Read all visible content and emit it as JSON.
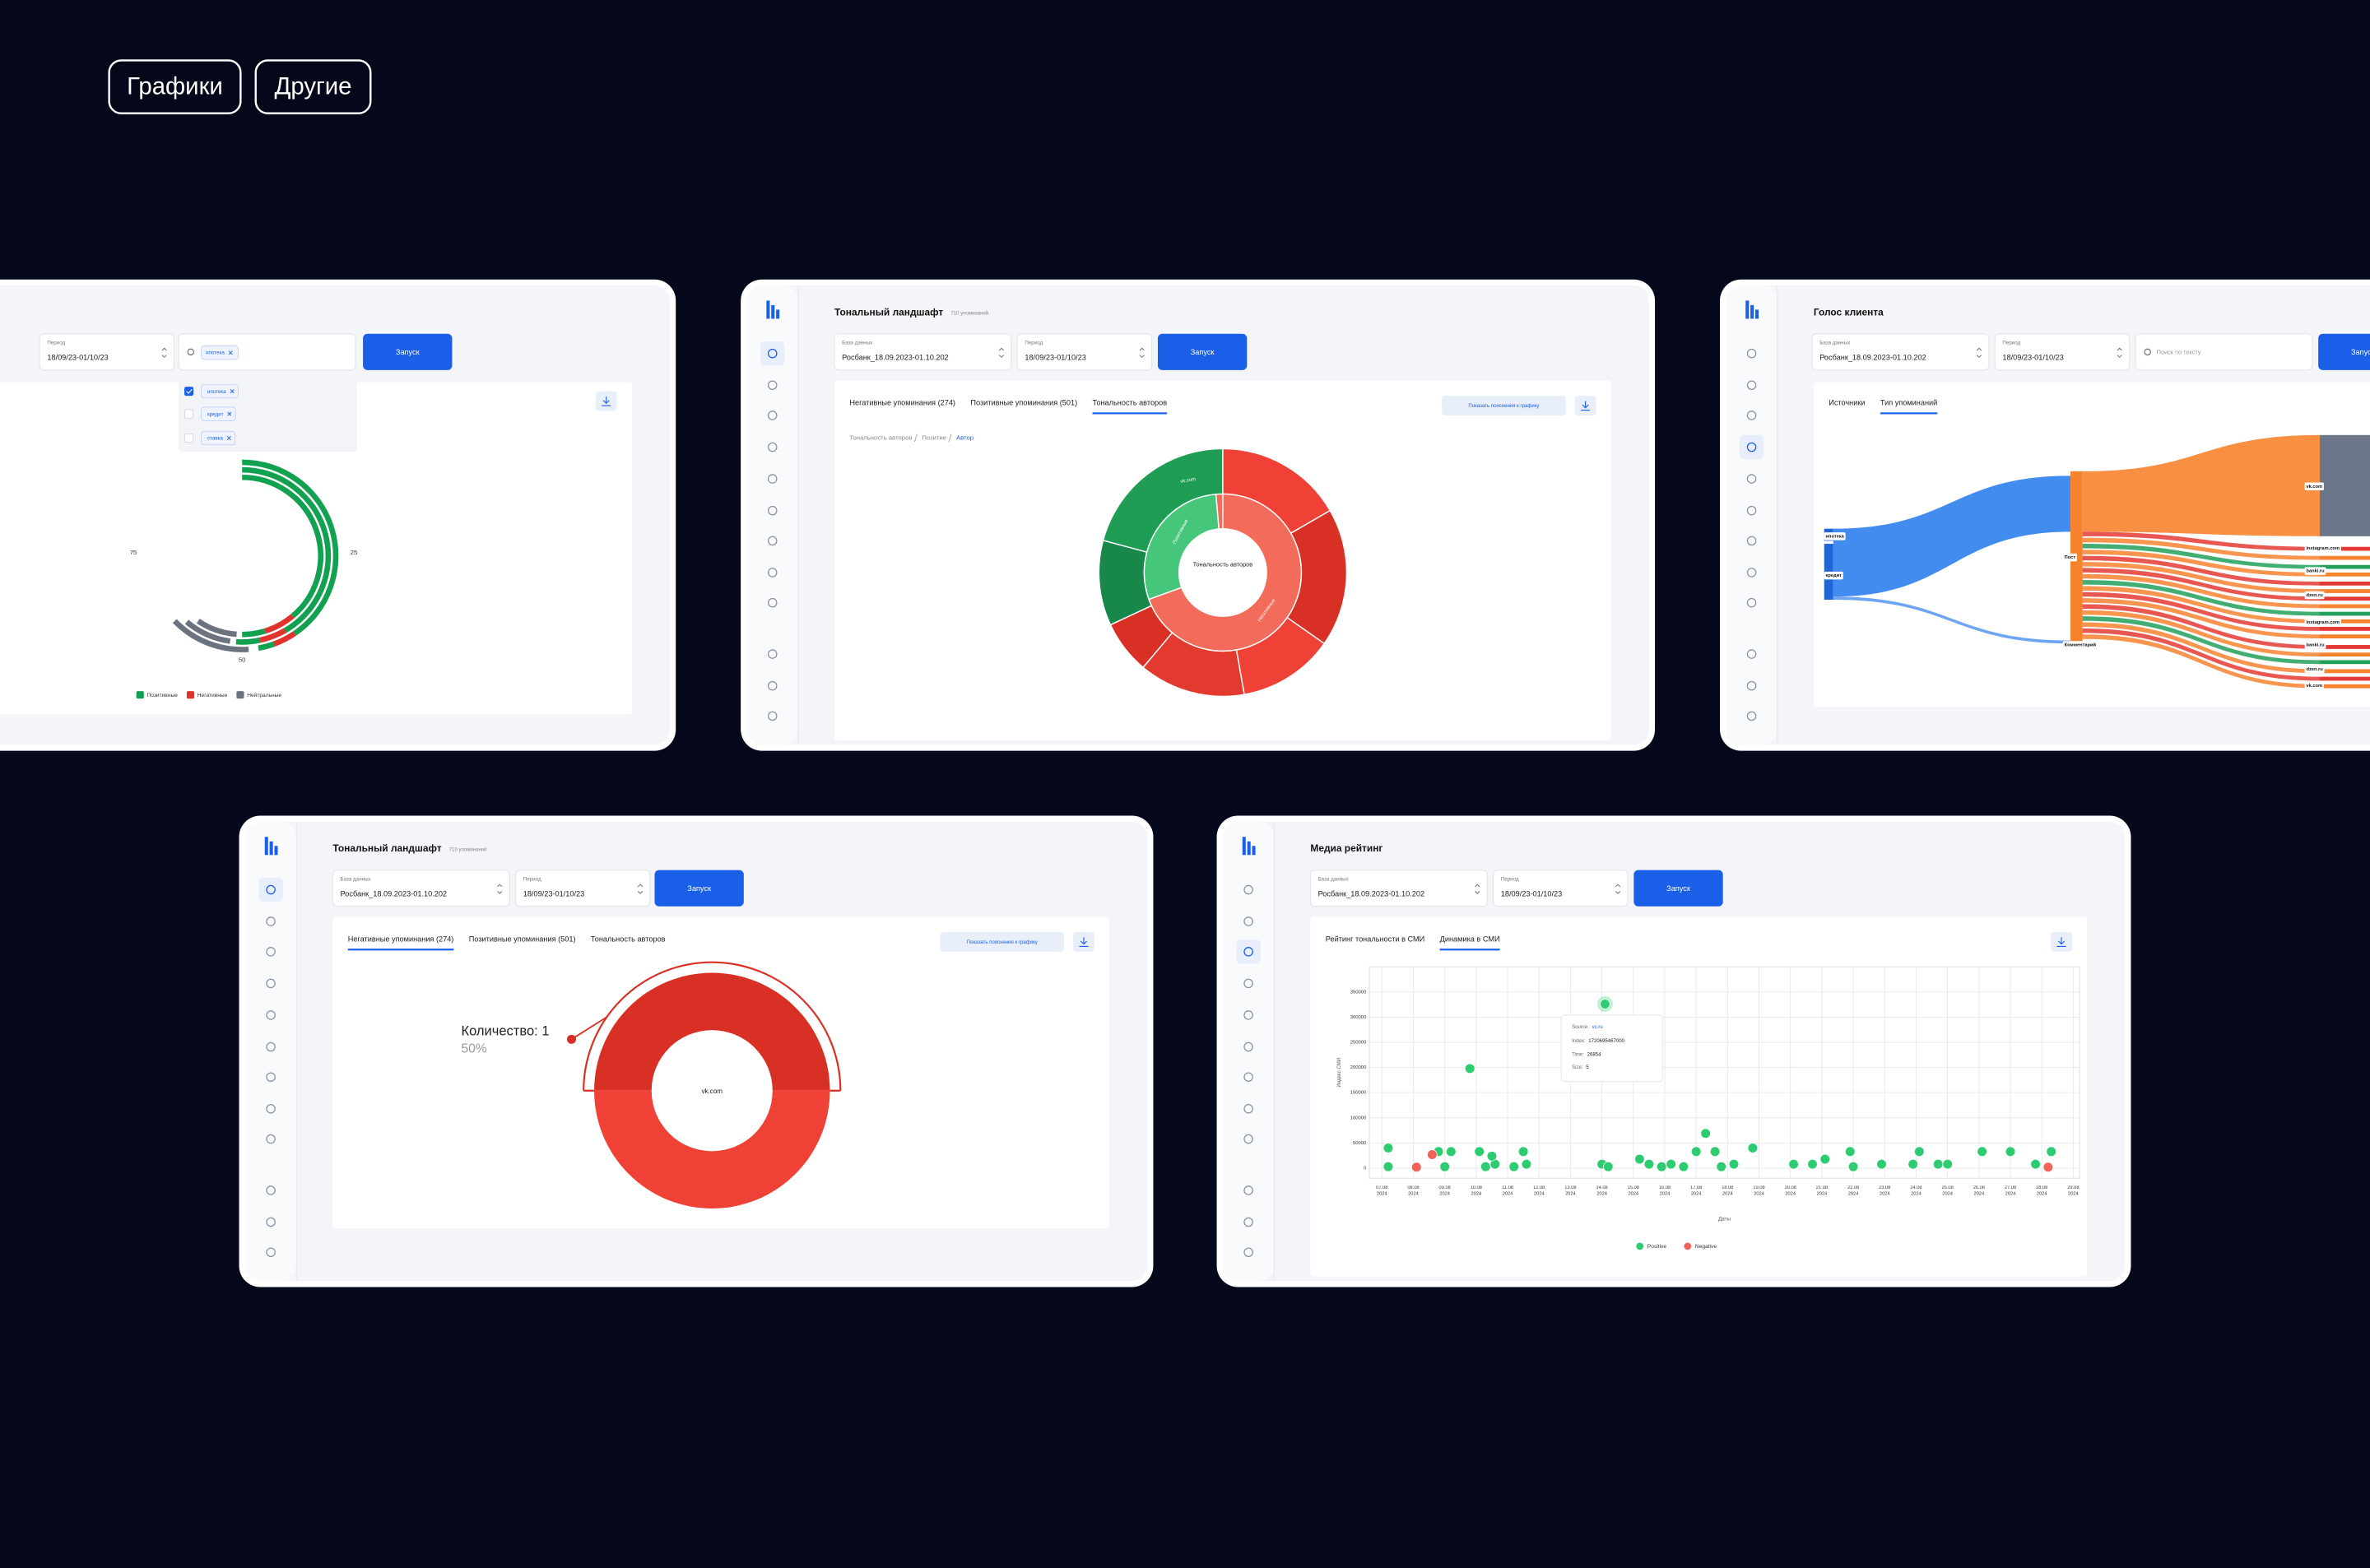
{
  "tags": [
    "Графики",
    "Другие"
  ],
  "panels": [
    {
      "fields": [
        {
          "label": "Период",
          "value": "18/09/23-01/10/23"
        }
      ],
      "search_chips": [
        "ипотека"
      ],
      "dropdown": [
        "ипотека",
        "кредит",
        "ставка"
      ],
      "button": "Запуск",
      "gauge_ticks": [
        75,
        25,
        50
      ],
      "legend": [
        "Позитивные",
        "Негативные",
        "Нейтральные"
      ]
    },
    {
      "title": "Тональный ландшафт",
      "count": "710 упоминаний",
      "fields": [
        {
          "label": "База данных",
          "value": "Росбанк_18.09.2023-01.10.202"
        },
        {
          "label": "Период",
          "value": "18/09/23-01/10/23"
        }
      ],
      "button": "Запуск",
      "tabs": [
        "Негативные упоминания (274)",
        "Позитивные упоминания (501)",
        "Тональность авторов"
      ],
      "active_tab": 2,
      "explain": "Показать пояснения к графику",
      "breadcrumb": [
        "Тональность авторов",
        "Позитие",
        "Автор"
      ],
      "center": "Тональность авторов",
      "ring_labels": [
        "vk.com",
        "Позитивные",
        "Негативные"
      ]
    },
    {
      "title": "Голос клиента",
      "fields": [
        {
          "label": "База данных",
          "value": "Росбанк_18.09.2023-01.10.202"
        },
        {
          "label": "Период",
          "value": "18/09/23-01/10/23"
        }
      ],
      "search": "Поиск по тексту",
      "button": "Запуск",
      "tabs": [
        "Источники",
        "Тип упоминаний"
      ],
      "active_tab": 1,
      "sankey_left": [
        "ипотека",
        "кредит"
      ],
      "sankey_middle": [
        "Пост",
        "Комментарий"
      ],
      "sankey_right": [
        "vk.com",
        "instagram.com",
        "banki.ru",
        "dzen.ru",
        "instagram.com",
        "banki.ru",
        "dzen.ru",
        "vk.com"
      ]
    },
    {
      "title": "Тональный ландшафт",
      "count": "710 упоминаний",
      "fields": [
        {
          "label": "База данных",
          "value": "Росбанк_18.09.2023-01.10.202"
        },
        {
          "label": "Период",
          "value": "18/09/23-01/10/23"
        }
      ],
      "button": "Запуск",
      "tabs": [
        "Негативные упоминания (274)",
        "Позитивные упоминания (501)",
        "Тональность авторов"
      ],
      "active_tab": 0,
      "explain": "Показать пояснения к графику",
      "donut": {
        "values": [
          1,
          1
        ],
        "colors": [
          "#d93025",
          "#ef4136"
        ],
        "center": "vk.com",
        "tooltip": [
          "Количество: 1",
          "50%"
        ]
      }
    },
    {
      "title": "Медиа рейтинг",
      "fields": [
        {
          "label": "База данных",
          "value": "Росбанк_18.09.2023-01.10.202"
        },
        {
          "label": "Период",
          "value": "18/09/23-01/10/23"
        }
      ],
      "button": "Запуск",
      "tabs": [
        "Рейтинг тональности в СМИ",
        "Динамика в СМИ"
      ],
      "active_tab": 1,
      "chart": {
        "type": "scatter",
        "ylabel": "Индекс СМИ",
        "xlabel": "Даты",
        "xlim": [
          6.6,
          29.2
        ],
        "ylim": [
          -20000,
          400000
        ],
        "grid": true,
        "yticks": [
          0,
          50000,
          100000,
          150000,
          200000,
          250000,
          300000,
          350000
        ],
        "xticks": [
          {
            "value": 7,
            "label": "07.08\n2024"
          },
          {
            "value": 8,
            "label": "08.08\n2024"
          },
          {
            "value": 9,
            "label": "09.08\n2024"
          },
          {
            "value": 10,
            "label": "10.08\n2024"
          },
          {
            "value": 11,
            "label": "11.08\n2024"
          },
          {
            "value": 12,
            "label": "12.08\n2024"
          },
          {
            "value": 13,
            "label": "13.08\n2024"
          },
          {
            "value": 14,
            "label": "14.08\n2024"
          },
          {
            "value": 15,
            "label": "15.08\n2024"
          },
          {
            "value": 16,
            "label": "16.08\n2024"
          },
          {
            "value": 17,
            "label": "17.08\n2024"
          },
          {
            "value": 18,
            "label": "18.08\n2024"
          },
          {
            "value": 19,
            "label": "19.08\n2024"
          },
          {
            "value": 20,
            "label": "20.08\n2024"
          },
          {
            "value": 21,
            "label": "21.08\n2024"
          },
          {
            "value": 22,
            "label": "22.08\n2024"
          },
          {
            "value": 23,
            "label": "23.08\n2024"
          },
          {
            "value": 24,
            "label": "24.08\n2024"
          },
          {
            "value": 25,
            "label": "25.08\n2024"
          },
          {
            "value": 26,
            "label": "26.08\n2024"
          },
          {
            "value": 27,
            "label": "27.08\n2024"
          },
          {
            "value": 28,
            "label": "28.08\n2024"
          },
          {
            "value": 29,
            "label": "29.08\n2024"
          }
        ],
        "series": [
          {
            "name": "Positive",
            "color": "#2ecc71",
            "x": [
              7.2,
              7.2,
              8.8,
              9.2,
              9.0,
              9.8,
              10.1,
              10.3,
              10.6,
              10.5,
              11.2,
              11.5,
              11.6,
              14.1,
              14.0,
              14.2,
              15.2,
              15.5,
              15.9,
              16.2,
              16.6,
              17.0,
              17.3,
              17.6,
              17.8,
              18.2,
              18.8,
              20.1,
              20.7,
              21.1,
              21.9,
              22.0,
              22.9,
              23.9,
              24.1,
              24.7,
              25.0,
              26.1,
              27.0,
              27.8,
              28.3
            ],
            "values": [
              40000,
              3000,
              33000,
              33000,
              3000,
              198000,
              33000,
              3000,
              8000,
              24000,
              3000,
              33000,
              8000,
              326000,
              8000,
              3000,
              18000,
              8000,
              3000,
              8000,
              3000,
              33000,
              69000,
              33000,
              3000,
              8000,
              40000,
              8000,
              8000,
              18000,
              33000,
              3000,
              8000,
              8000,
              33000,
              8000,
              8000,
              33000,
              33000,
              8000,
              33000
            ]
          },
          {
            "name": "Negative",
            "color": "#f0625a",
            "x": [
              8.1,
              8.6,
              28.2
            ],
            "values": [
              2000,
              27000,
              2000
            ]
          }
        ],
        "tooltip": {
          "source_label": "Source:",
          "source": "vc.ru",
          "index_label": "Index:",
          "index": 1720695467000,
          "time_label": "Time:",
          "time": 26854,
          "size_label": "Size:",
          "size": 5
        }
      }
    }
  ]
}
